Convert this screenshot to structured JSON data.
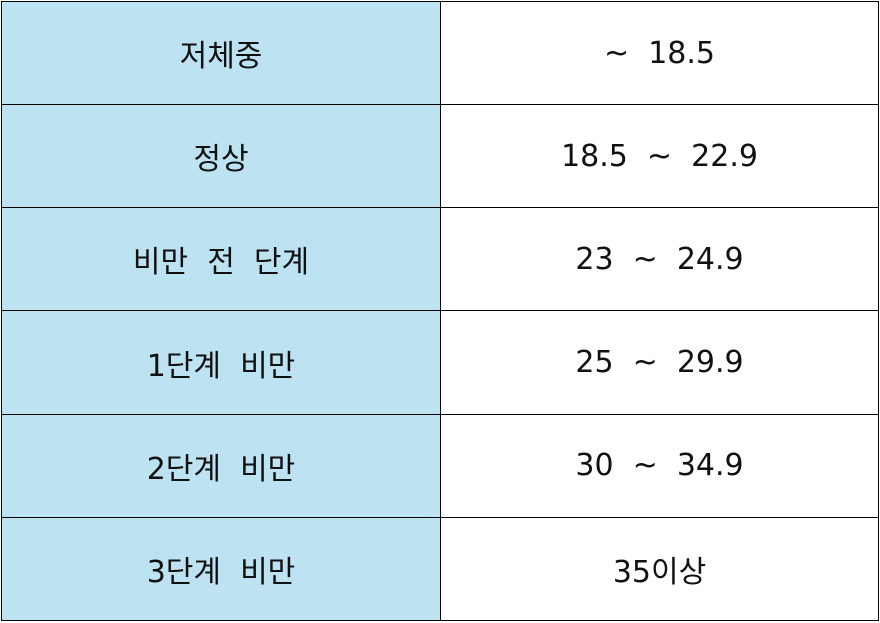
{
  "table": {
    "rows": [
      {
        "category": "저체중",
        "range": "~  18.5"
      },
      {
        "category": "정상",
        "range": "18.5  ~  22.9"
      },
      {
        "category": "비만  전  단계",
        "range": "23  ~  24.9"
      },
      {
        "category": "1단계  비만",
        "range": "25  ~  29.9"
      },
      {
        "category": "2단계  비만",
        "range": "30  ~  34.9"
      },
      {
        "category": "3단계  비만",
        "range": "35이상"
      }
    ]
  },
  "colors": {
    "label_background": "#bde3f3",
    "value_background": "#ffffff",
    "border": "#000000"
  }
}
